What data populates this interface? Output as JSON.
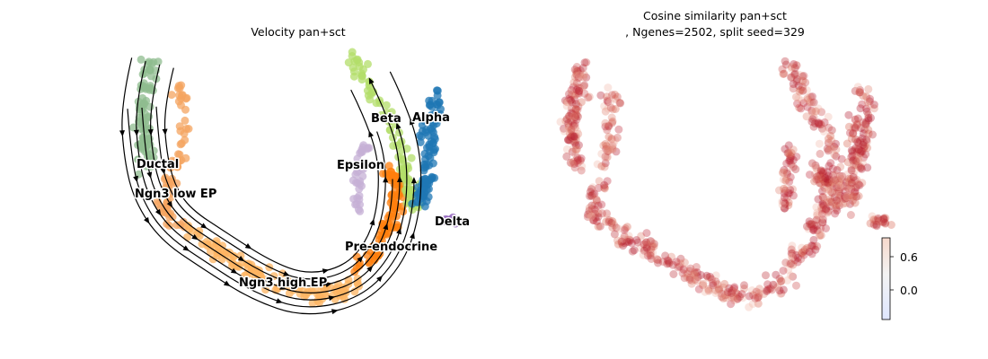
{
  "chart_data": [
    {
      "type": "scatter",
      "title": "Velocity pan+sct",
      "xlabel": "",
      "ylabel": "",
      "grid": false,
      "legend": "on-data",
      "overlay": "velocity-streamlines",
      "clusters": [
        {
          "name": "Ductal",
          "color": "#8fbc8f"
        },
        {
          "name": "Ngn3 low EP",
          "color": "#f4a460"
        },
        {
          "name": "Ngn3 high EP",
          "color": "#fdb462"
        },
        {
          "name": "Pre-endocrine",
          "color": "#ff7f0e"
        },
        {
          "name": "Beta",
          "color": "#b3de69"
        },
        {
          "name": "Alpha",
          "color": "#1f77b4"
        },
        {
          "name": "Epsilon",
          "color": "#c5b0d5"
        },
        {
          "name": "Delta",
          "color": "#9467bd"
        }
      ]
    },
    {
      "type": "scatter",
      "title_line1": "Cosine similarity pan+sct",
      "title_line2": ", Ngenes=2502, split seed=329",
      "xlabel": "",
      "ylabel": "",
      "grid": false,
      "colorbar": {
        "ticks": [
          "0.6",
          "0.0"
        ],
        "cmap": "coolwarm"
      }
    }
  ]
}
